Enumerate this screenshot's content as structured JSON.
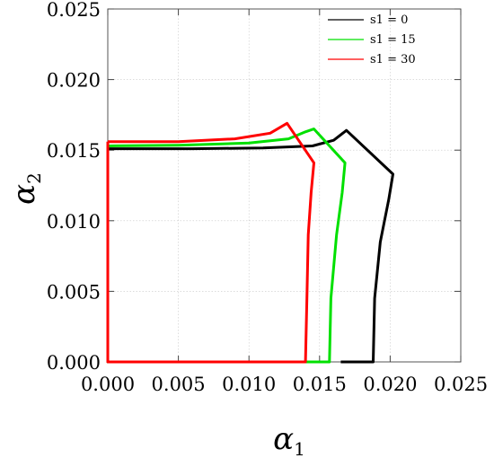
{
  "chart_data": {
    "type": "line",
    "xlabel": "α",
    "xlabel_sub": "1",
    "ylabel": "α",
    "ylabel_sub": "2",
    "xlim": [
      0,
      0.025
    ],
    "ylim": [
      0,
      0.025
    ],
    "x_ticks": [
      "0.000",
      "0.005",
      "0.010",
      "0.015",
      "0.020",
      "0.025"
    ],
    "y_ticks": [
      "0.000",
      "0.005",
      "0.010",
      "0.015",
      "0.020",
      "0.025"
    ],
    "grid": true,
    "legend_position": "top-right",
    "series": [
      {
        "name": "s1 = 0",
        "color": "#000000",
        "points": [
          [
            0,
            0.0151
          ],
          [
            0.006,
            0.0151
          ],
          [
            0.011,
            0.01515
          ],
          [
            0.0145,
            0.0153
          ],
          [
            0.016,
            0.0157
          ],
          [
            0.0169,
            0.0164
          ],
          [
            0.0202,
            0.0133
          ],
          [
            0.0199,
            0.0115
          ],
          [
            0.0193,
            0.0085
          ],
          [
            0.0189,
            0.0045
          ],
          [
            0.0188,
            0
          ],
          [
            0.0165,
            0
          ]
        ]
      },
      {
        "name": "s1 = 15",
        "color": "#00e000",
        "points": [
          [
            0,
            0.0153
          ],
          [
            0.005,
            0.01535
          ],
          [
            0.01,
            0.0155
          ],
          [
            0.0128,
            0.0158
          ],
          [
            0.014,
            0.0163
          ],
          [
            0.0146,
            0.0165
          ],
          [
            0.0168,
            0.0141
          ],
          [
            0.0166,
            0.012
          ],
          [
            0.0162,
            0.009
          ],
          [
            0.0158,
            0.0045
          ],
          [
            0.0157,
            0
          ],
          [
            0,
            0
          ],
          [
            0,
            0.0153
          ]
        ]
      },
      {
        "name": "s1 = 30",
        "color": "#ff0000",
        "points": [
          [
            0,
            0.0156
          ],
          [
            0.005,
            0.0156
          ],
          [
            0.009,
            0.0158
          ],
          [
            0.0115,
            0.0162
          ],
          [
            0.0127,
            0.0169
          ],
          [
            0.0146,
            0.0141
          ],
          [
            0.0144,
            0.012
          ],
          [
            0.0142,
            0.009
          ],
          [
            0.0141,
            0.0045
          ],
          [
            0.014,
            0
          ],
          [
            0,
            0
          ],
          [
            0,
            0.0156
          ]
        ]
      }
    ]
  }
}
